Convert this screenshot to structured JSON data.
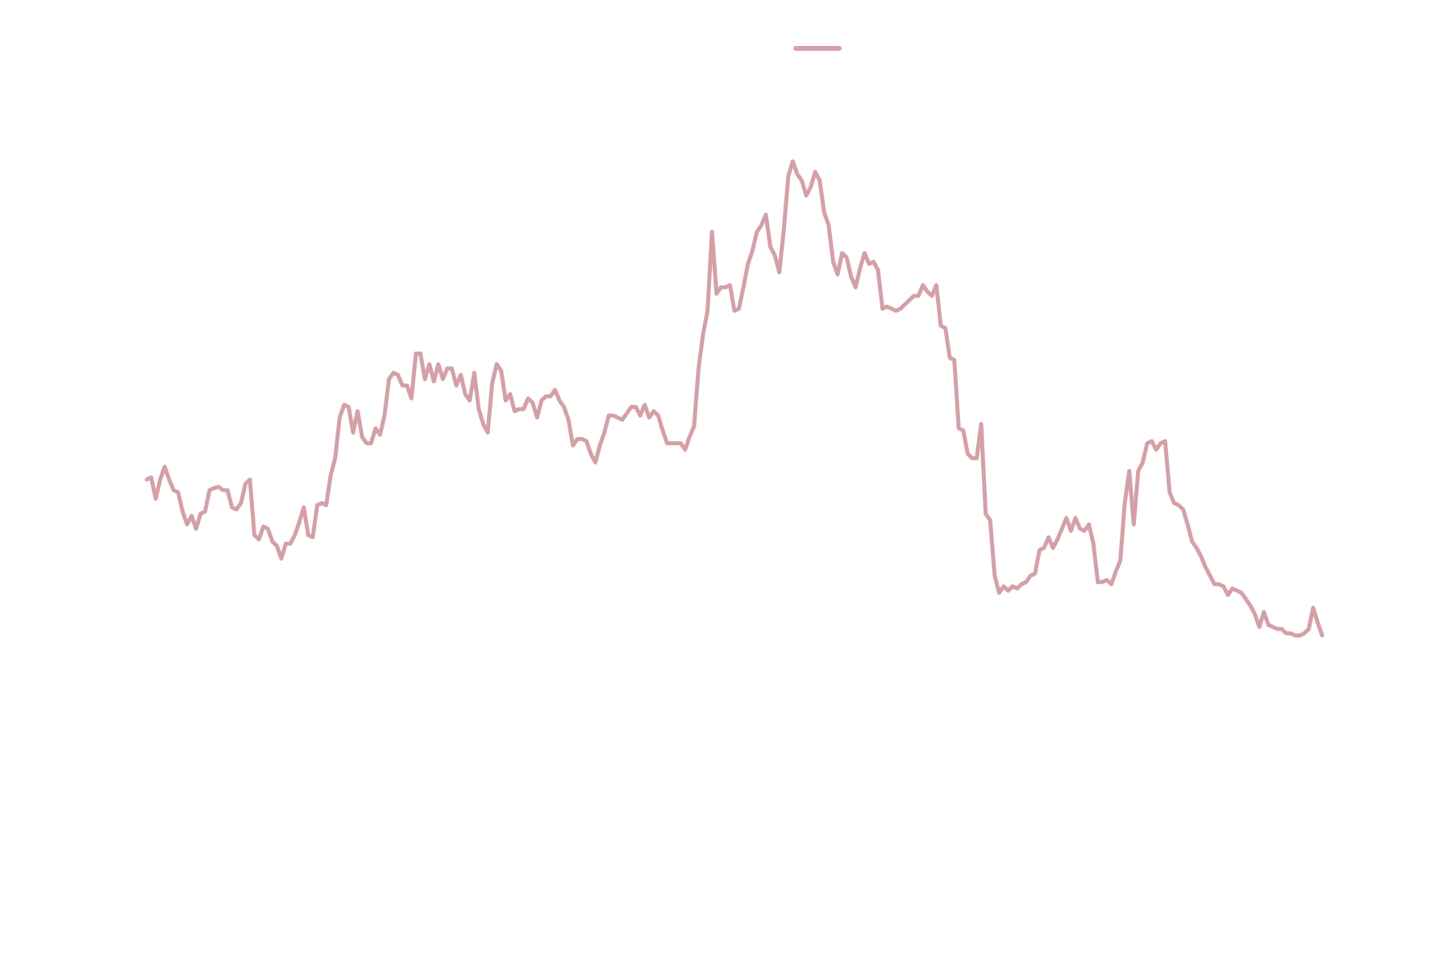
{
  "chart_data": {
    "type": "line",
    "title": "",
    "xlabel": "",
    "ylabel": "",
    "grid": false,
    "axes_visible": false,
    "legend_placement": "top-center",
    "x": [
      0,
      1,
      2,
      3,
      4,
      5,
      6,
      7,
      8,
      9,
      10,
      11,
      12,
      13,
      14,
      15,
      16,
      17,
      18,
      19,
      20,
      21,
      22,
      23,
      24,
      25,
      26,
      27,
      28,
      29,
      30,
      31,
      32,
      33,
      34,
      35,
      36,
      37,
      38,
      39,
      40,
      41,
      42,
      43,
      44,
      45,
      46,
      47,
      48,
      49,
      50,
      51,
      52,
      53,
      54,
      55,
      56,
      57,
      58,
      59,
      60,
      61,
      62,
      63,
      64,
      65,
      66,
      67,
      68,
      69,
      70,
      71,
      72,
      73,
      74,
      75,
      76,
      77,
      78,
      79,
      80,
      81,
      82,
      83,
      84,
      85,
      86,
      87,
      88,
      89,
      90,
      91,
      92,
      93,
      94,
      95,
      96,
      97,
      98,
      99,
      100,
      101,
      102,
      103,
      104,
      105,
      106,
      107,
      108,
      109,
      110,
      111,
      112,
      113,
      114,
      115,
      116,
      117,
      118,
      119,
      120,
      121,
      122,
      123,
      124,
      125,
      126,
      127,
      128,
      129,
      130,
      131,
      132,
      133,
      134,
      135,
      136,
      137,
      138,
      139,
      140,
      141,
      142,
      143,
      144,
      145,
      146,
      147,
      148,
      149,
      150,
      151,
      152,
      153,
      154,
      155,
      156,
      157,
      158,
      159,
      160,
      161,
      162,
      163,
      164,
      165,
      166,
      167,
      168,
      169,
      170,
      171,
      172,
      173,
      174,
      175,
      176,
      177,
      178,
      179,
      180,
      181,
      182,
      183,
      184,
      185,
      186,
      187,
      188,
      189,
      190,
      191,
      192,
      193,
      194,
      195,
      196,
      197,
      198,
      199,
      200,
      201,
      202,
      203,
      204,
      205,
      206,
      207,
      208,
      209,
      210,
      211,
      212,
      213,
      214,
      215,
      216,
      217,
      218,
      219,
      220,
      221,
      222,
      223,
      224,
      225,
      226,
      227,
      228,
      229,
      230,
      231,
      232,
      233,
      234,
      235,
      236,
      237,
      238,
      239,
      240,
      241,
      242,
      243,
      244,
      245,
      246,
      247,
      248,
      249,
      250,
      251,
      252,
      253,
      254,
      255,
      256,
      257,
      258,
      259,
      260,
      261,
      262
    ],
    "series": [
      {
        "color": "#d4a0a7",
        "values": [
          36.5,
          37.0,
          32.0,
          36.5,
          39.5,
          36.5,
          34.0,
          33.5,
          29.0,
          26.0,
          28.0,
          25.0,
          28.5,
          29.0,
          34.0,
          34.5,
          34.8,
          34.0,
          34.0,
          30.0,
          29.5,
          31.0,
          35.5,
          36.5,
          23.5,
          22.5,
          25.5,
          25.0,
          22.0,
          21.0,
          18.0,
          21.5,
          21.5,
          23.5,
          26.5,
          30.0,
          23.5,
          23.0,
          30.5,
          31.0,
          30.5,
          37.5,
          41.5,
          51.0,
          54.0,
          53.5,
          47.5,
          52.5,
          46.5,
          45.0,
          45.0,
          48.5,
          47.0,
          51.5,
          60.0,
          61.5,
          61.0,
          58.5,
          58.5,
          55.5,
          66.0,
          66.0,
          60.0,
          63.5,
          59.5,
          63.5,
          60.0,
          62.5,
          62.5,
          58.5,
          61.0,
          56.5,
          55.0,
          61.5,
          53.0,
          49.5,
          47.5,
          59.0,
          63.5,
          62.0,
          55.0,
          56.5,
          52.5,
          53.0,
          53.0,
          55.5,
          54.5,
          51.0,
          55.0,
          56.0,
          56.0,
          57.5,
          55.0,
          53.5,
          50.5,
          44.5,
          46.0,
          46.0,
          45.5,
          42.5,
          40.5,
          44.5,
          47.5,
          51.5,
          51.5,
          51.0,
          50.5,
          52.0,
          53.5,
          53.5,
          51.5,
          54.0,
          51.0,
          52.5,
          51.5,
          48.0,
          45.0,
          45.0,
          45.0,
          45.0,
          43.5,
          46.5,
          49.0,
          62.5,
          70.5,
          76.0,
          94.5,
          80.0,
          81.5,
          81.5,
          82.0,
          76.0,
          76.5,
          81.5,
          87.0,
          90.0,
          94.5,
          96.0,
          98.5,
          91.0,
          89.0,
          85.0,
          95.0,
          107.5,
          111.0,
          108.0,
          106.5,
          103.0,
          105.0,
          108.5,
          106.5,
          99.0,
          96.0,
          87.5,
          84.5,
          89.5,
          88.5,
          84.0,
          81.5,
          86.0,
          89.5,
          87.0,
          87.5,
          85.5,
          76.5,
          77.0,
          76.5,
          76.0,
          76.5,
          77.5,
          78.5,
          79.5,
          79.5,
          82.0,
          80.5,
          79.5,
          82.0,
          72.5,
          72.0,
          65.0,
          64.5,
          48.5,
          48.0,
          42.5,
          41.5,
          41.5,
          49.5,
          28.5,
          27.0,
          14.0,
          10.0,
          11.5,
          10.5,
          11.5,
          11.0,
          12.0,
          12.5,
          14.0,
          14.5,
          20.0,
          20.5,
          23.0,
          20.5,
          22.5,
          25.0,
          27.5,
          24.5,
          27.5,
          25.0,
          24.5,
          26.0,
          21.5,
          12.5,
          12.5,
          13.0,
          12.0,
          15.0,
          17.5,
          31.0,
          38.5,
          26.0,
          38.5,
          40.5,
          45.0,
          45.5,
          43.5,
          45.0,
          45.5,
          33.5,
          31.0,
          30.5,
          29.5,
          26.0,
          22.0,
          20.5,
          18.5,
          16.0,
          14.0,
          12.0,
          12.0,
          11.5,
          9.5,
          11.0,
          10.5,
          10.0,
          8.5,
          7.0,
          5.0,
          2.0,
          5.5,
          2.5,
          2.0,
          1.5,
          1.5,
          0.5,
          0.5,
          0.0,
          0.0,
          0.5,
          1.5,
          6.5,
          3.0,
          0.0
        ]
      }
    ]
  },
  "legend": {
    "items": [
      {
        "swatch_color": "#d4a0a7"
      }
    ]
  }
}
